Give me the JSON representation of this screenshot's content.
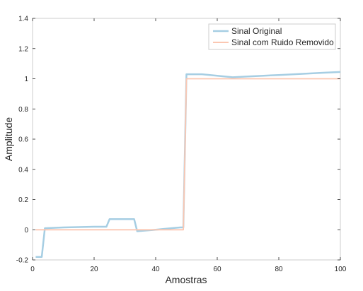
{
  "chart_data": {
    "type": "line",
    "title": "",
    "xlabel": "Amostras",
    "ylabel": "Amplitude",
    "xlim": [
      0,
      100
    ],
    "ylim": [
      -0.2,
      1.4
    ],
    "xticks": [
      0,
      20,
      40,
      60,
      80,
      100
    ],
    "xtick_labels": [
      "0",
      "20",
      "40",
      "60",
      "80",
      "100"
    ],
    "yticks": [
      -0.2,
      0,
      0.2,
      0.4,
      0.6,
      0.8,
      1,
      1.2,
      1.4
    ],
    "ytick_labels": [
      "-0.2",
      "0",
      "0.2",
      "0.4",
      "0.6",
      "0.8",
      "1",
      "1.2",
      "1.4"
    ],
    "grid": false,
    "legend_position": "top-right",
    "series": [
      {
        "name": "Sinal Original",
        "color": "#a6cee3",
        "x": [
          1,
          3,
          4,
          10,
          20,
          24,
          25,
          33,
          34,
          40,
          45,
          48,
          49,
          50,
          55,
          60,
          65,
          70,
          75,
          80,
          85,
          90,
          95,
          100
        ],
        "y": [
          -0.18,
          -0.18,
          0.01,
          0.015,
          0.02,
          0.02,
          0.07,
          0.07,
          -0.01,
          0.0,
          0.01,
          0.015,
          0.015,
          1.03,
          1.03,
          1.02,
          1.01,
          1.015,
          1.02,
          1.025,
          1.03,
          1.035,
          1.04,
          1.045
        ]
      },
      {
        "name": "Sinal com Ruido Removido",
        "color": "#fbc7b2",
        "x": [
          1,
          49,
          50,
          100
        ],
        "y": [
          0,
          0,
          1,
          1
        ]
      }
    ]
  }
}
